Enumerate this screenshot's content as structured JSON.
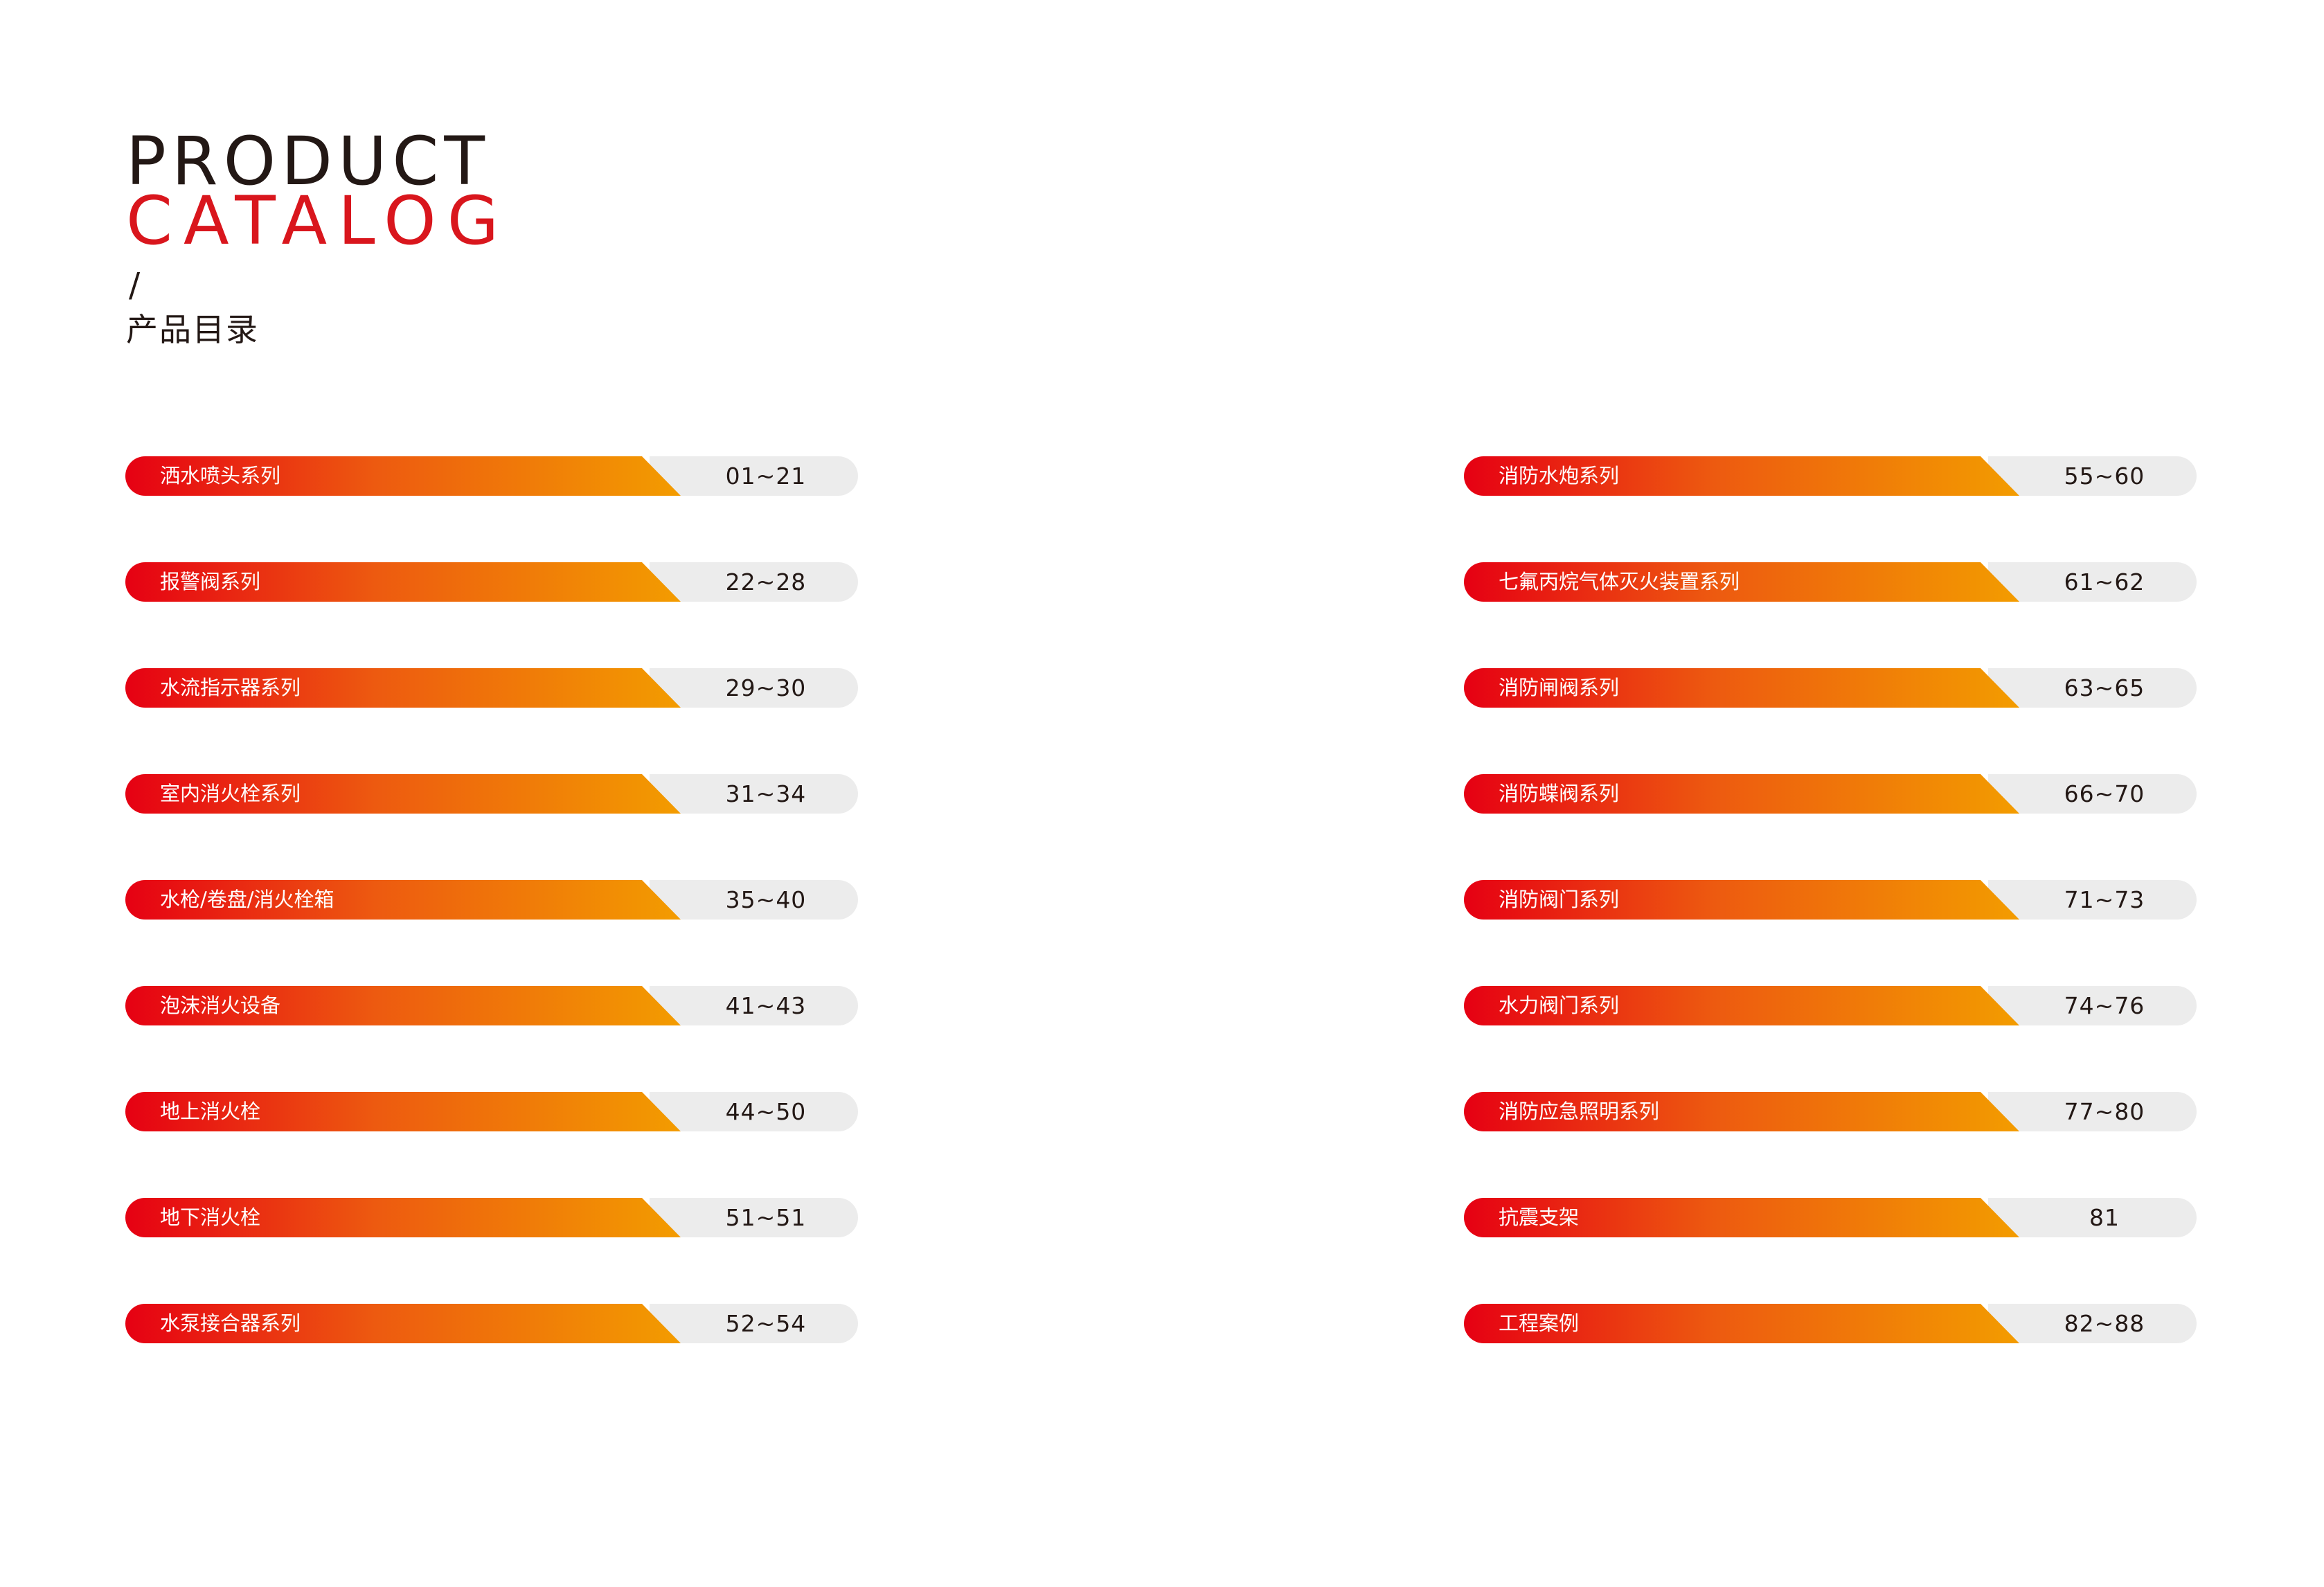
{
  "header": {
    "title_line1": "PRODUCT",
    "title_line2": "CATALOG",
    "slash": "/",
    "subtitle": "产品目录"
  },
  "colors": {
    "accent_red": "#d9161d",
    "gradient_start": "#e60013",
    "gradient_end": "#f39c00",
    "pill_gray": "#ececec",
    "text_dark": "#231815"
  },
  "left_entries": [
    {
      "label": "洒水喷头系列",
      "pages": "01~21"
    },
    {
      "label": "报警阀系列",
      "pages": "22~28"
    },
    {
      "label": "水流指示器系列",
      "pages": "29~30"
    },
    {
      "label": "室内消火栓系列",
      "pages": "31~34"
    },
    {
      "label": "水枪/卷盘/消火栓箱",
      "pages": "35~40"
    },
    {
      "label": "泡沫消火设备",
      "pages": "41~43"
    },
    {
      "label": "地上消火栓",
      "pages": "44~50"
    },
    {
      "label": "地下消火栓",
      "pages": "51~51"
    },
    {
      "label": "水泵接合器系列",
      "pages": "52~54"
    }
  ],
  "right_entries": [
    {
      "label": "消防水炮系列",
      "pages": "55~60"
    },
    {
      "label": "七氟丙烷气体灭火装置系列",
      "pages": "61~62"
    },
    {
      "label": "消防闸阀系列",
      "pages": "63~65"
    },
    {
      "label": "消防蝶阀系列",
      "pages": "66~70"
    },
    {
      "label": "消防阀门系列",
      "pages": "71~73"
    },
    {
      "label": "水力阀门系列",
      "pages": "74~76"
    },
    {
      "label": "消防应急照明系列",
      "pages": "77~80"
    },
    {
      "label": "抗震支架",
      "pages": "81"
    },
    {
      "label": "工程案例",
      "pages": "82~88"
    }
  ]
}
